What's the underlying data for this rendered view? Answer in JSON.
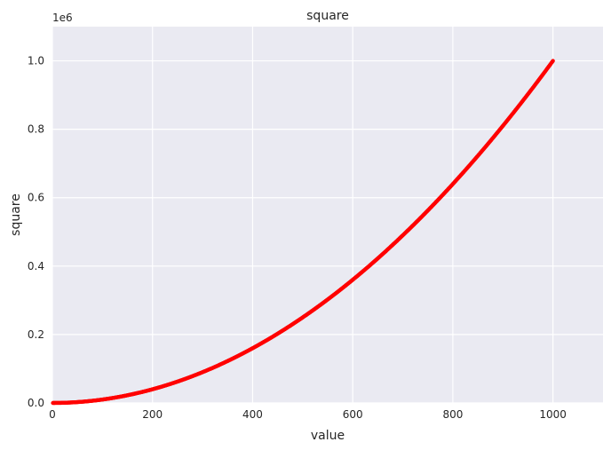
{
  "chart_data": {
    "type": "scatter",
    "title": "square",
    "xlabel": "value",
    "ylabel": "square",
    "y_scale_label": "1e6",
    "xlim": [
      0,
      1100
    ],
    "ylim": [
      0,
      1100000
    ],
    "x_ticks": [
      0,
      200,
      400,
      600,
      800,
      1000
    ],
    "x_tick_labels": [
      "0",
      "200",
      "400",
      "600",
      "800",
      "1000"
    ],
    "y_ticks": [
      0,
      200000,
      400000,
      600000,
      800000,
      1000000
    ],
    "y_tick_labels": [
      "0.0",
      "0.2",
      "0.4",
      "0.6",
      "0.8",
      "1.0"
    ],
    "grid": true,
    "series": [
      {
        "function": "y = x^2",
        "x_range": [
          1,
          1000
        ],
        "color": "#ff0000"
      }
    ],
    "colors": {
      "background": "#eaeaf2",
      "grid": "#ffffff",
      "points": "#ff0000"
    }
  }
}
